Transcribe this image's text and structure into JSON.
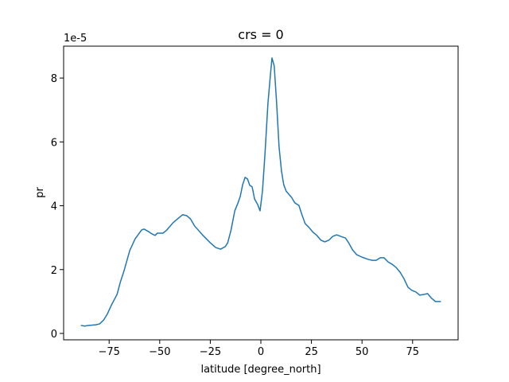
{
  "chart_data": {
    "type": "line",
    "title": "crs = 0",
    "xlabel": "latitude [degree_north]",
    "ylabel": "pr",
    "y_offset_label": "1e-5",
    "xlim": [
      -97.5,
      97.5
    ],
    "ylim": [
      -0.2,
      9.0
    ],
    "xticks": [
      {
        "value": -75,
        "label": "−75"
      },
      {
        "value": -50,
        "label": "−50"
      },
      {
        "value": -25,
        "label": "−25"
      },
      0,
      25,
      50,
      75
    ],
    "yticks": [
      0,
      2,
      4,
      6,
      8
    ],
    "grid": false,
    "series": [
      {
        "name": "pr",
        "color": "#1f77b4",
        "x": [
          -88.7,
          -87.1,
          -85.5,
          -81.6,
          -79.7,
          -77.7,
          -75.8,
          -73.8,
          -71.1,
          -69.5,
          -67.6,
          -64.8,
          -62.1,
          -60.9,
          -59.0,
          -57.8,
          -55.5,
          -53.9,
          -52.3,
          -51.2,
          -48.4,
          -46.5,
          -43.4,
          -40.6,
          -38.7,
          -36.7,
          -34.8,
          -32.8,
          -28.9,
          -25.0,
          -22.3,
          -19.9,
          -17.6,
          -16.4,
          -14.8,
          -12.9,
          -11.3,
          -10.2,
          -9.0,
          -7.8,
          -6.6,
          -5.5,
          -4.3,
          -3.1,
          -1.6,
          -0.4,
          0.8,
          2.0,
          3.5,
          4.7,
          5.5,
          6.6,
          7.8,
          9.0,
          10.2,
          11.3,
          12.5,
          14.1,
          15.2,
          16.8,
          18.8,
          20.3,
          21.9,
          23.8,
          25.8,
          27.7,
          29.7,
          31.6,
          33.6,
          35.5,
          37.5,
          39.5,
          41.8,
          43.4,
          45.3,
          47.3,
          50.0,
          53.1,
          55.1,
          57.0,
          59.0,
          60.9,
          62.9,
          64.8,
          66.8,
          68.8,
          70.7,
          72.7,
          74.6,
          76.6,
          78.5,
          80.5,
          82.4,
          84.4,
          86.3,
          88.7
        ],
        "values": [
          0.25,
          0.23,
          0.25,
          0.27,
          0.3,
          0.42,
          0.62,
          0.9,
          1.22,
          1.6,
          1.97,
          2.6,
          2.97,
          3.07,
          3.24,
          3.27,
          3.19,
          3.12,
          3.07,
          3.14,
          3.14,
          3.24,
          3.47,
          3.62,
          3.72,
          3.69,
          3.59,
          3.37,
          3.09,
          2.84,
          2.69,
          2.64,
          2.72,
          2.84,
          3.22,
          3.84,
          4.09,
          4.29,
          4.66,
          4.89,
          4.84,
          4.64,
          4.59,
          4.21,
          4.04,
          3.84,
          4.46,
          5.59,
          7.21,
          8.08,
          8.63,
          8.38,
          7.21,
          5.84,
          5.09,
          4.66,
          4.46,
          4.34,
          4.26,
          4.09,
          4.01,
          3.72,
          3.44,
          3.32,
          3.17,
          3.07,
          2.92,
          2.87,
          2.92,
          3.04,
          3.09,
          3.04,
          2.99,
          2.84,
          2.62,
          2.47,
          2.39,
          2.32,
          2.29,
          2.29,
          2.37,
          2.37,
          2.24,
          2.17,
          2.07,
          1.92,
          1.72,
          1.45,
          1.35,
          1.3,
          1.2,
          1.22,
          1.25,
          1.1,
          1.0,
          1.0
        ]
      }
    ]
  }
}
